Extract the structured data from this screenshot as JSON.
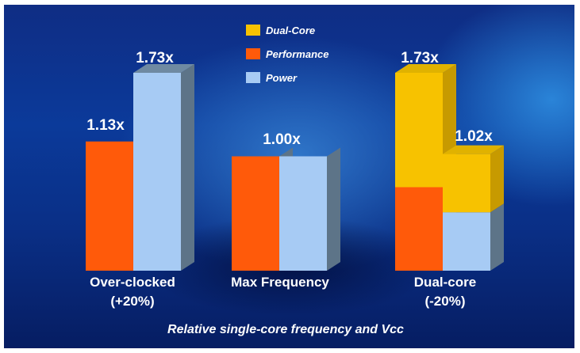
{
  "chart_data": {
    "type": "bar",
    "xlabel": "Relative single-core frequency and Vcc",
    "ylabel": "",
    "ylim": [
      0,
      1.73
    ],
    "grid": false,
    "legend_position": "top-center",
    "legend": [
      {
        "name": "Dual-Core",
        "color": "#f7c200"
      },
      {
        "name": "Performance",
        "color": "#ff5a0a"
      },
      {
        "name": "Power",
        "color": "#a7cbf4"
      }
    ],
    "groups": [
      {
        "line1": "Over-clocked",
        "line2": "(+20%)",
        "bars": [
          {
            "series": "Performance",
            "value": 1.13,
            "label": "1.13x"
          },
          {
            "series": "Power",
            "value": 1.73,
            "label": "1.73x"
          }
        ]
      },
      {
        "line1": "Max Frequency",
        "line2": "",
        "bars": [
          {
            "series": "Performance",
            "value": 1.0,
            "label": "1.00x"
          },
          {
            "series": "Power",
            "value": 1.0,
            "label": ""
          }
        ]
      },
      {
        "line1": "Dual-core",
        "line2": "(-20%)",
        "bars": [
          {
            "series": "Performance",
            "value": 0.73,
            "stack_value": 1.73,
            "label": "1.73x"
          },
          {
            "series": "Power",
            "value": 0.51,
            "stack_value": 1.02,
            "label": "1.02x"
          }
        ]
      }
    ],
    "annotations": {
      "max_freq_label": "1.00x"
    }
  }
}
